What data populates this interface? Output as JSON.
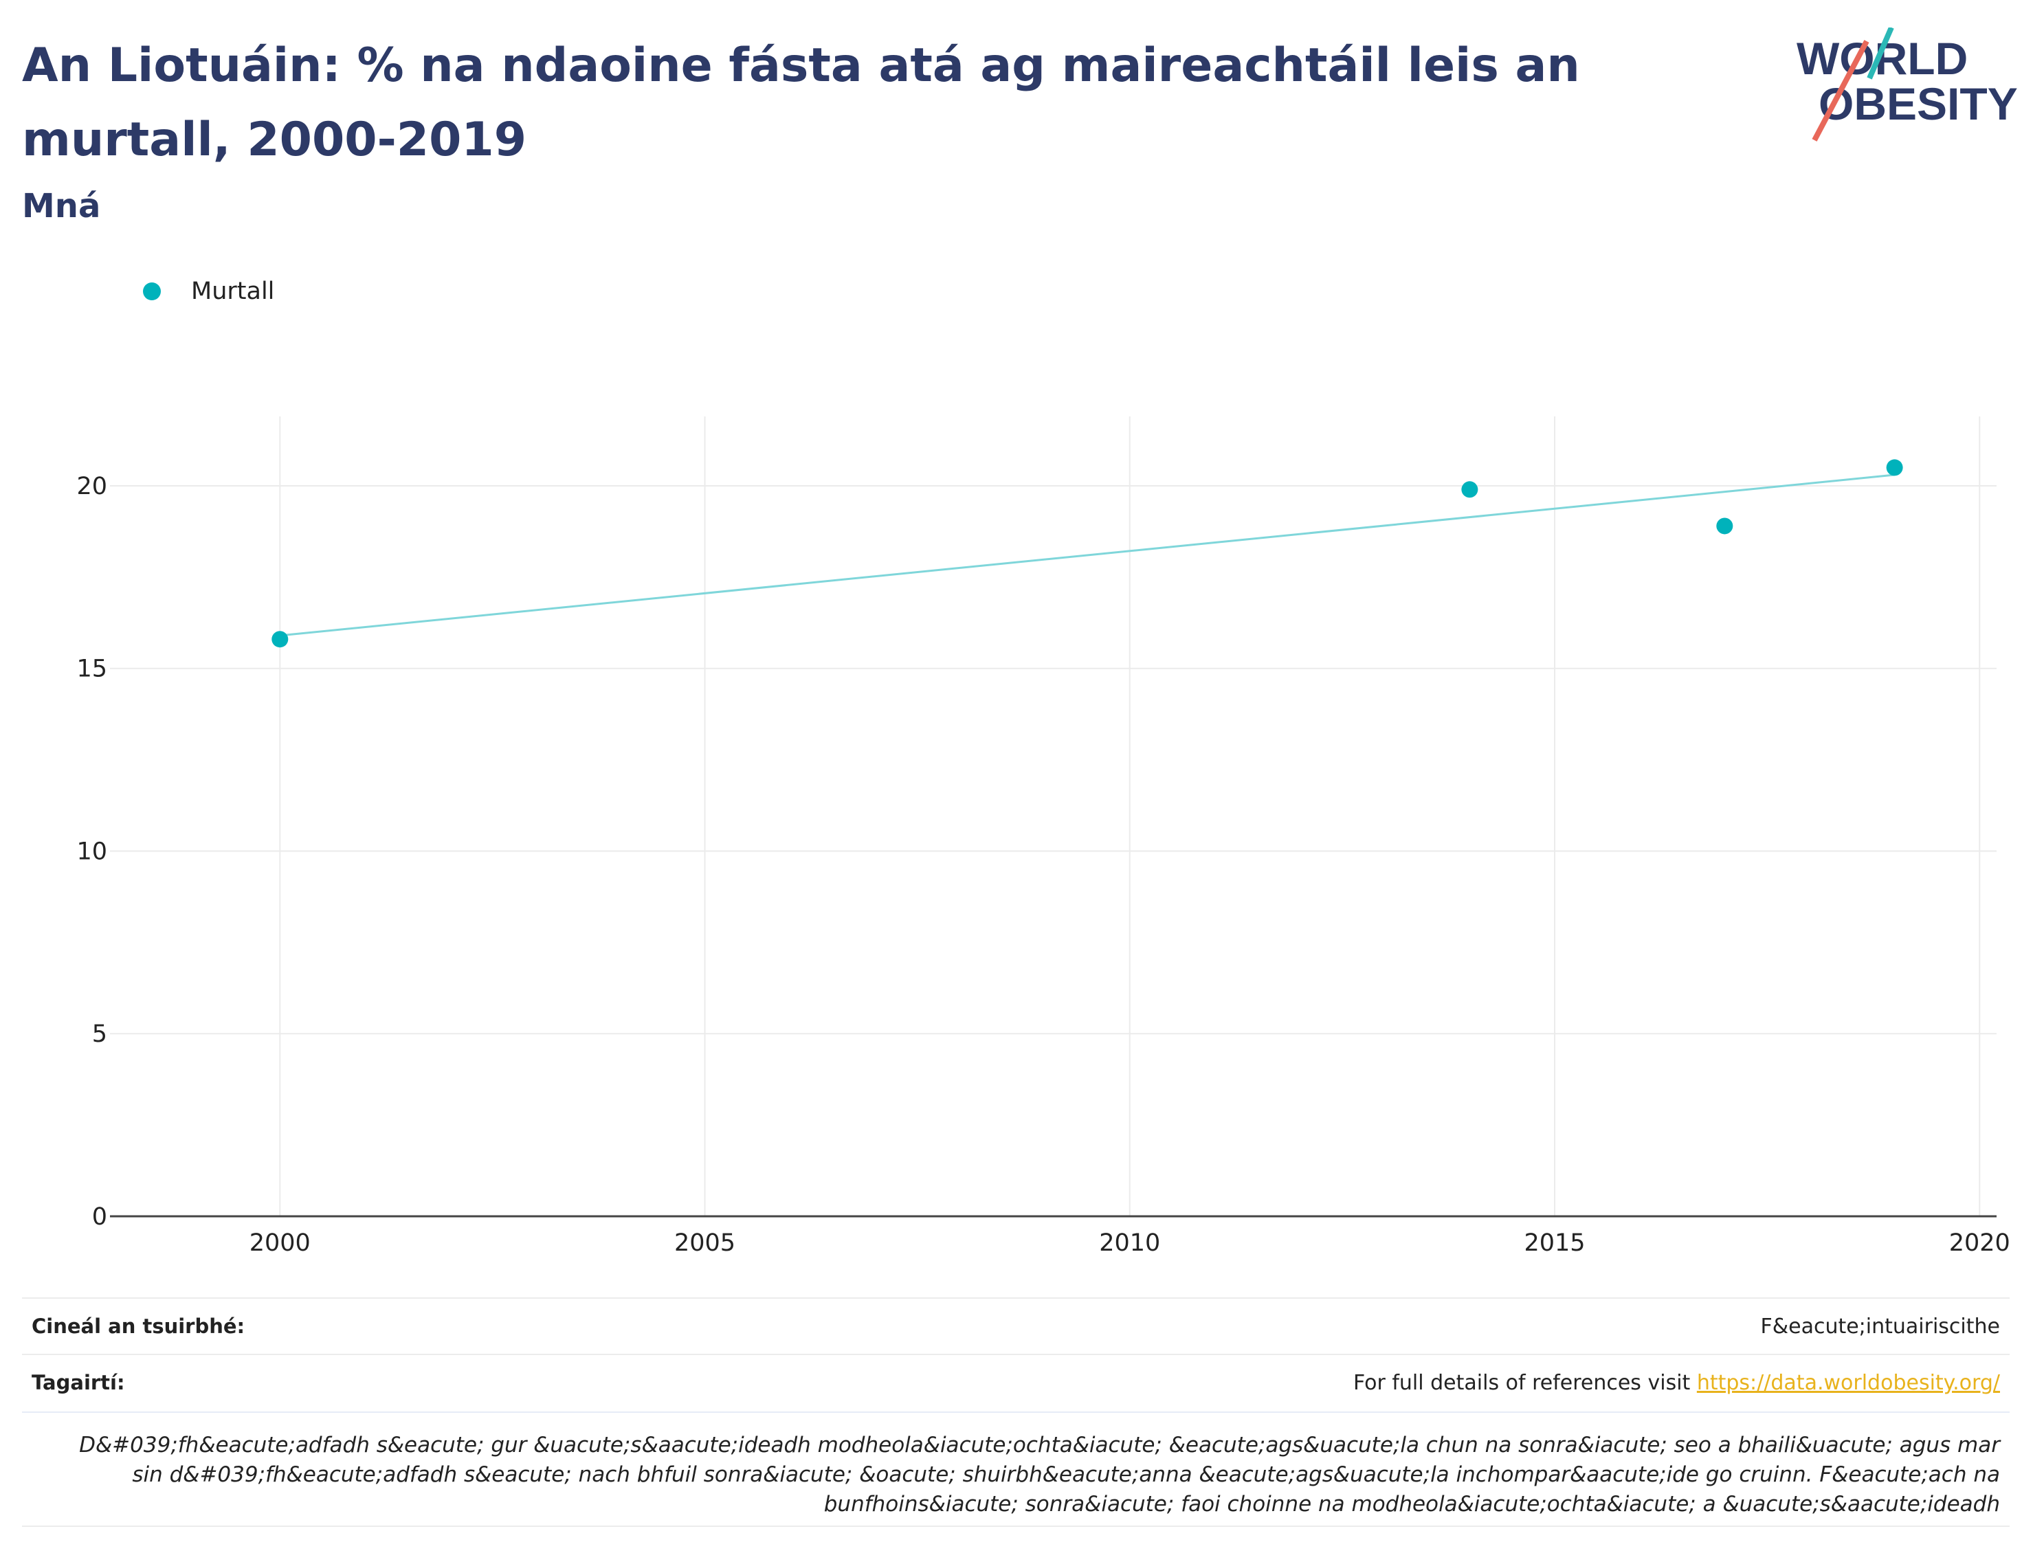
{
  "header": {
    "title": "An Liotuáin: % na ndaoine fásta atá ag maireachtáil leis an murtall, 2000-2019",
    "subtitle": "Mná"
  },
  "logo": {
    "line1": "WORLD",
    "line2": "OBESITY"
  },
  "colors": {
    "title": "#2d3a67",
    "series": "#00b2bb",
    "trend": "#7fd6da",
    "logo_teal": "#2bb8b6",
    "logo_red": "#e8685a",
    "link": "#e8b21c"
  },
  "chart_data": {
    "type": "scatter",
    "title": "An Liotuáin: % na ndaoine fásta atá ag maireachtáil leis an murtall, 2000-2019",
    "subtitle": "Mná",
    "xlabel": "",
    "ylabel": "",
    "xlim": [
      1998,
      2020.2
    ],
    "ylim": [
      0,
      21.9
    ],
    "x_ticks": [
      2000,
      2005,
      2010,
      2015,
      2020
    ],
    "y_ticks": [
      0,
      5,
      10,
      15,
      20
    ],
    "grid": true,
    "legend_position": "top-left",
    "series": [
      {
        "name": "Murtall",
        "x": [
          2000,
          2014,
          2017,
          2019
        ],
        "y": [
          15.8,
          19.9,
          18.9,
          20.5
        ]
      }
    ],
    "trendline": {
      "x": [
        2000,
        2019
      ],
      "y": [
        15.9,
        20.3
      ]
    }
  },
  "meta": {
    "survey_type_label": "Cineál an tsuirbhé:",
    "survey_type_value": "F&eacute;intuairiscithe",
    "references_label": "Tagairtí:",
    "references_text": "For full details of references visit ",
    "references_link": "https://data.worldobesity.org/",
    "note": "D&#039;fh&eacute;adfadh s&eacute; gur &uacute;s&aacute;ideadh modheola&iacute;ochta&iacute; &eacute;ags&uacute;la chun na sonra&iacute; seo a bhaili&uacute; agus mar sin d&#039;fh&eacute;adfadh s&eacute; nach bhfuil sonra&iacute; &oacute; shuirbh&eacute;anna &eacute;ags&uacute;la inchompar&aacute;ide go cruinn. F&eacute;ach na bunfhoins&iacute; sonra&iacute; faoi choinne na modheola&iacute;ochta&iacute; a &uacute;s&aacute;ideadh"
  }
}
